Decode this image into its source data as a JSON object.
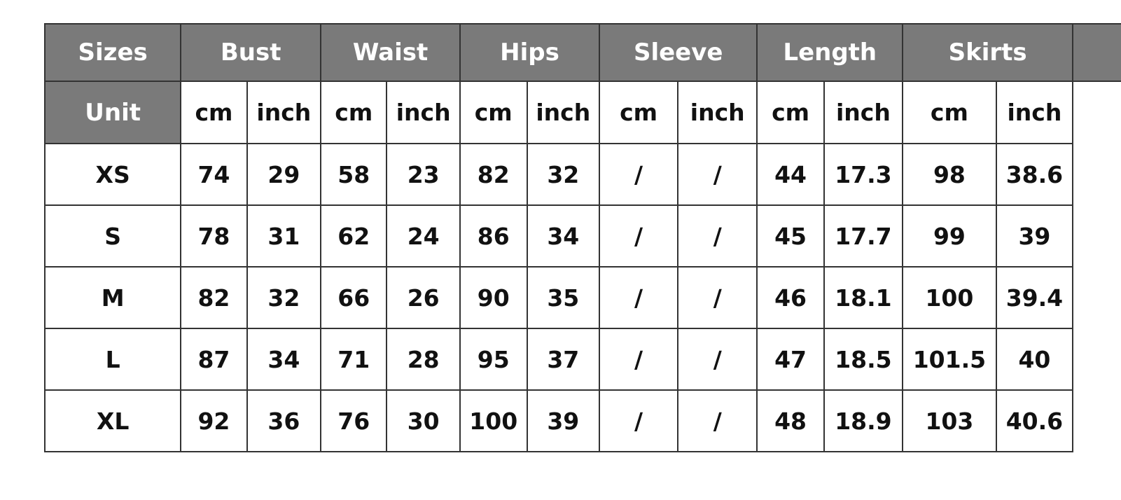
{
  "header_color": "#7a7a7a",
  "headers": {
    "sizes": "Sizes",
    "unit": "Unit",
    "groups": [
      "Bust",
      "Waist",
      "Hips",
      "Sleeve",
      "Length",
      "Skirts"
    ],
    "units": [
      "cm",
      "inch",
      "cm",
      "inch",
      "cm",
      "inch",
      "cm",
      "inch",
      "cm",
      "inch",
      "cm",
      "inch"
    ]
  },
  "rows": [
    {
      "size": "XS",
      "values": [
        "74",
        "29",
        "58",
        "23",
        "82",
        "32",
        "/",
        "/",
        "44",
        "17.3",
        "98",
        "38.6"
      ]
    },
    {
      "size": "S",
      "values": [
        "78",
        "31",
        "62",
        "24",
        "86",
        "34",
        "/",
        "/",
        "45",
        "17.7",
        "99",
        "39"
      ]
    },
    {
      "size": "M",
      "values": [
        "82",
        "32",
        "66",
        "26",
        "90",
        "35",
        "/",
        "/",
        "46",
        "18.1",
        "100",
        "39.4"
      ]
    },
    {
      "size": "L",
      "values": [
        "87",
        "34",
        "71",
        "28",
        "95",
        "37",
        "/",
        "/",
        "47",
        "18.5",
        "101.5",
        "40"
      ]
    },
    {
      "size": "XL",
      "values": [
        "92",
        "36",
        "76",
        "30",
        "100",
        "39",
        "/",
        "/",
        "48",
        "18.9",
        "103",
        "40.6"
      ]
    }
  ]
}
